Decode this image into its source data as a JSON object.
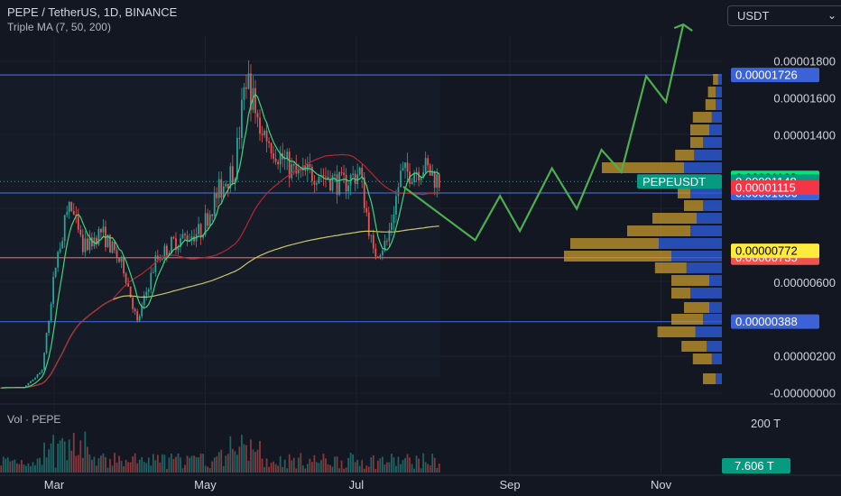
{
  "header": {
    "title": "PEPE / TetherUS, 1D, BINANCE",
    "study": "Triple MA (7, 50, 200)",
    "currency": "USDT",
    "volume_label": "Vol · PEPE"
  },
  "colors": {
    "background": "#131722",
    "up": "#26a69a",
    "down": "#ef5350",
    "ma7": "#3fd67a",
    "ma50": "#b22833",
    "ma200": "#c9c66a",
    "projection": "#4caf50",
    "level_blue": "#3b62d6",
    "level_red": "#ef5350",
    "vp_gold": "#c79a2c",
    "vp_blue": "#2d5bd8"
  },
  "chart_data": {
    "type": "candlestick",
    "symbol": "PEPEUSDT",
    "y_axis_labels": [
      "0.00001800",
      "0.00001600",
      "0.00001400",
      "0.00000600",
      "0.00000200",
      "-0.00000000"
    ],
    "x_axis_labels": [
      "Mar",
      "May",
      "Jul",
      "Sep",
      "Nov"
    ],
    "ylim": [
      -2e-07,
      1.95e-05
    ],
    "horizontal_levels": [
      {
        "value": 1.726e-05,
        "label": "0.00001726",
        "color": "#3b62d6"
      },
      {
        "value": 1.086e-05,
        "label": "0.00001086",
        "color": "#3b62d6"
      },
      {
        "value": 7.35e-06,
        "label": "0.00000735",
        "color": "#ef5350"
      },
      {
        "value": 3.88e-06,
        "label": "0.00000388",
        "color": "#3b62d6"
      }
    ],
    "price_labels": [
      {
        "value": 1.168e-05,
        "label": "0.00001168",
        "bg": "#00e676",
        "fg": "#000000"
      },
      {
        "value": 1.148e-05,
        "label": "0.00001148",
        "bg": "#089981",
        "fg": "#ffffff",
        "tag": "PEPEUSDT"
      },
      {
        "value": 1.115e-05,
        "label": "0.00001115",
        "bg": "#f23645",
        "fg": "#ffffff"
      },
      {
        "value": 7.72e-06,
        "label": "0.00000772",
        "bg": "#ffeb3b",
        "fg": "#000000"
      }
    ],
    "close_price": 1.148e-05,
    "projection_path": [
      {
        "x": "Jul 20",
        "y": 1.12e-05
      },
      {
        "x": "Aug 18",
        "y": 8.3e-06
      },
      {
        "x": "Aug 28",
        "y": 1.07e-05
      },
      {
        "x": "Sep 5",
        "y": 8.8e-06
      },
      {
        "x": "Sep 18",
        "y": 1.22e-05
      },
      {
        "x": "Sep 28",
        "y": 1e-05
      },
      {
        "x": "Oct 8",
        "y": 1.32e-05
      },
      {
        "x": "Oct 16",
        "y": 1.2e-05
      },
      {
        "x": "Oct 26",
        "y": 1.72e-05
      },
      {
        "x": "Nov 3",
        "y": 1.58e-05
      },
      {
        "x": "Nov 10",
        "y": 2e-05
      }
    ],
    "volume_axis_labels": [
      "200 T"
    ],
    "last_volume": "7.606 T"
  }
}
